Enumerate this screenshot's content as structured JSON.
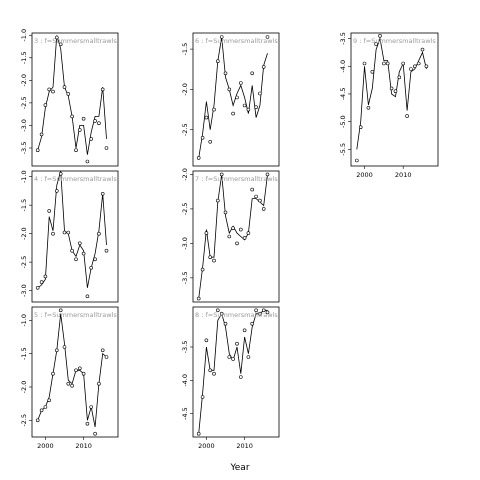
{
  "figure": {
    "xlabel": "Year"
  },
  "chart_data": [
    {
      "type": "line",
      "title": "3 : f=Summersmalltrawls",
      "xlim": [
        1996.5,
        2019
      ],
      "ylim": [
        -3.9,
        -0.95
      ],
      "x_ticks": [
        2000,
        2010
      ],
      "show_x_ticks": false,
      "y_ticks": [
        -1.0,
        -1.5,
        -2.0,
        -2.5,
        -3.0,
        -3.5
      ],
      "y_tick_labels": [
        "-1.0",
        "-1.5",
        "-2.0",
        "-2.5",
        "-3.0",
        "-3.5"
      ],
      "points": {
        "x": [
          1998,
          1999,
          2000,
          2001,
          2002,
          2003,
          2004,
          2005,
          2006,
          2007,
          2008,
          2009,
          2010,
          2011,
          2012,
          2013,
          2014,
          2015,
          2016
        ],
        "y": [
          -3.55,
          -3.2,
          -2.55,
          -2.2,
          -2.25,
          -1.05,
          -1.2,
          -2.15,
          -2.3,
          -2.8,
          -3.55,
          -3.1,
          -2.85,
          -3.8,
          -3.3,
          -2.9,
          -2.95,
          -2.2,
          -3.5
        ]
      },
      "line": {
        "x": [
          1998,
          1999,
          2000,
          2001,
          2002,
          2003,
          2004,
          2005,
          2006,
          2007,
          2008,
          2009,
          2010,
          2011,
          2012,
          2013,
          2014,
          2015,
          2016
        ],
        "y": [
          -3.55,
          -3.25,
          -2.6,
          -2.25,
          -2.15,
          -1.0,
          -1.3,
          -2.15,
          -2.35,
          -2.8,
          -3.5,
          -3.0,
          -3.0,
          -3.65,
          -3.15,
          -2.8,
          -2.8,
          -2.15,
          -3.3
        ]
      }
    },
    {
      "type": "line",
      "title": "4 : f=Summersmalltrawls",
      "xlim": [
        1996.5,
        2019
      ],
      "ylim": [
        -3.2,
        -0.9
      ],
      "x_ticks": [
        2000,
        2010
      ],
      "show_x_ticks": false,
      "y_ticks": [
        -1.0,
        -1.5,
        -2.0,
        -2.5,
        -3.0
      ],
      "y_tick_labels": [
        "-1.0",
        "-1.5",
        "-2.0",
        "-2.5",
        "-3.0"
      ],
      "points": {
        "x": [
          1998,
          1999,
          2000,
          2001,
          2002,
          2003,
          2004,
          2005,
          2006,
          2007,
          2008,
          2009,
          2010,
          2011,
          2012,
          2013,
          2014,
          2015,
          2016
        ],
        "y": [
          -2.95,
          -2.85,
          -2.75,
          -1.6,
          -2.0,
          -1.25,
          -0.95,
          -1.98,
          -1.98,
          -2.3,
          -2.45,
          -2.17,
          -2.35,
          -3.1,
          -2.6,
          -2.45,
          -2.0,
          -1.3,
          -2.3
        ]
      },
      "line": {
        "x": [
          1998,
          1999,
          2000,
          2001,
          2002,
          2003,
          2004,
          2005,
          2006,
          2007,
          2008,
          2009,
          2010,
          2011,
          2012,
          2013,
          2014,
          2015,
          2016
        ],
        "y": [
          -2.95,
          -2.9,
          -2.8,
          -1.7,
          -1.95,
          -1.15,
          -0.9,
          -1.95,
          -2.0,
          -2.3,
          -2.4,
          -2.2,
          -2.3,
          -2.95,
          -2.6,
          -2.35,
          -1.95,
          -1.3,
          -2.2
        ]
      }
    },
    {
      "type": "line",
      "title": "5 : f=Summersmalltrawls",
      "xlim": [
        1996.5,
        2019
      ],
      "ylim": [
        -2.75,
        -0.8
      ],
      "x_ticks": [
        2000,
        2010
      ],
      "x_tick_labels": [
        "2000",
        "2010"
      ],
      "show_x_ticks": true,
      "y_ticks": [
        -1.0,
        -1.5,
        -2.0,
        -2.5
      ],
      "y_tick_labels": [
        "-1.0",
        "-1.5",
        "-2.0",
        "-2.5"
      ],
      "points": {
        "x": [
          1998,
          1999,
          2000,
          2001,
          2002,
          2003,
          2004,
          2005,
          2006,
          2007,
          2008,
          2009,
          2010,
          2011,
          2012,
          2013,
          2014,
          2015,
          2016
        ],
        "y": [
          -2.5,
          -2.35,
          -2.3,
          -2.2,
          -1.8,
          -1.45,
          -0.85,
          -1.4,
          -1.95,
          -1.98,
          -1.75,
          -1.72,
          -1.8,
          -2.55,
          -2.3,
          -2.7,
          -1.95,
          -1.45,
          -1.55
        ]
      },
      "line": {
        "x": [
          1998,
          1999,
          2000,
          2001,
          2002,
          2003,
          2004,
          2005,
          2006,
          2007,
          2008,
          2009,
          2010,
          2011,
          2012,
          2013,
          2014,
          2015,
          2016
        ],
        "y": [
          -2.5,
          -2.35,
          -2.3,
          -2.15,
          -1.8,
          -1.45,
          -0.9,
          -1.35,
          -1.9,
          -1.95,
          -1.75,
          -1.75,
          -1.8,
          -2.5,
          -2.3,
          -2.6,
          -1.95,
          -1.5,
          -1.55
        ]
      }
    },
    {
      "type": "line",
      "title": "6 : f=Summersmalltrawls",
      "xlim": [
        1996.5,
        2019
      ],
      "ylim": [
        -2.95,
        -1.3
      ],
      "x_ticks": [
        2000,
        2010
      ],
      "show_x_ticks": false,
      "y_ticks": [
        -1.5,
        -2.0,
        -2.5
      ],
      "y_tick_labels": [
        "-1.5",
        "-2.0",
        "-2.5"
      ],
      "points": {
        "x": [
          1998,
          1999,
          2000,
          2001,
          2002,
          2003,
          2004,
          2005,
          2006,
          2007,
          2008,
          2009,
          2010,
          2011,
          2012,
          2013,
          2014,
          2015,
          2016
        ],
        "y": [
          -2.85,
          -2.6,
          -2.35,
          -2.65,
          -2.25,
          -1.65,
          -1.35,
          -1.8,
          -2.0,
          -2.3,
          -2.1,
          -1.92,
          -2.2,
          -2.25,
          -1.8,
          -2.22,
          -2.05,
          -1.72,
          -1.35
        ]
      },
      "line": {
        "x": [
          1998,
          1999,
          2000,
          2001,
          2002,
          2003,
          2004,
          2005,
          2006,
          2007,
          2008,
          2009,
          2010,
          2011,
          2012,
          2013,
          2014,
          2015,
          2016
        ],
        "y": [
          -2.85,
          -2.55,
          -2.15,
          -2.5,
          -2.2,
          -1.65,
          -1.35,
          -1.85,
          -2.0,
          -2.2,
          -2.05,
          -1.95,
          -2.1,
          -2.3,
          -1.95,
          -2.35,
          -2.2,
          -1.7,
          -1.55
        ]
      }
    },
    {
      "type": "line",
      "title": "7 : f=Summersmalltrawls",
      "xlim": [
        1996.5,
        2019
      ],
      "ylim": [
        -3.85,
        -1.95
      ],
      "x_ticks": [
        2000,
        2010
      ],
      "show_x_ticks": false,
      "y_ticks": [
        -2.0,
        -2.5,
        -3.0,
        -3.5
      ],
      "y_tick_labels": [
        "-2.0",
        "-2.5",
        "-3.0",
        "-3.5"
      ],
      "points": {
        "x": [
          1998,
          1999,
          2000,
          2001,
          2002,
          2003,
          2004,
          2005,
          2006,
          2007,
          2008,
          2009,
          2010,
          2011,
          2012,
          2013,
          2014,
          2015,
          2016
        ],
        "y": [
          -3.8,
          -3.38,
          -2.85,
          -3.2,
          -3.25,
          -2.38,
          -2.0,
          -2.55,
          -2.9,
          -2.78,
          -3.0,
          -2.8,
          -2.92,
          -2.85,
          -2.22,
          -2.32,
          -2.38,
          -2.5,
          -2.0
        ]
      },
      "line": {
        "x": [
          1998,
          1999,
          2000,
          2001,
          2002,
          2003,
          2004,
          2005,
          2006,
          2007,
          2008,
          2009,
          2010,
          2011,
          2012,
          2013,
          2014,
          2015,
          2016
        ],
        "y": [
          -3.8,
          -3.35,
          -2.8,
          -3.2,
          -3.2,
          -2.4,
          -2.0,
          -2.6,
          -2.85,
          -2.75,
          -2.85,
          -2.9,
          -2.95,
          -2.85,
          -2.35,
          -2.35,
          -2.4,
          -2.45,
          -2.0
        ]
      }
    },
    {
      "type": "line",
      "title": "8 : f=Summersmalltrawls",
      "xlim": [
        1996.5,
        2019
      ],
      "ylim": [
        -4.85,
        -2.9
      ],
      "x_ticks": [
        2000,
        2010
      ],
      "x_tick_labels": [
        "2000",
        "2010"
      ],
      "show_x_ticks": true,
      "y_ticks": [
        -3.5,
        -4.0,
        -4.5
      ],
      "y_tick_labels": [
        "-3.5",
        "-4.0",
        "-4.5"
      ],
      "points": {
        "x": [
          1998,
          1999,
          2000,
          2001,
          2002,
          2003,
          2004,
          2005,
          2006,
          2007,
          2008,
          2009,
          2010,
          2011,
          2012,
          2013,
          2014,
          2015,
          2016
        ],
        "y": [
          -4.8,
          -4.25,
          -3.4,
          -3.85,
          -3.9,
          -2.95,
          -3.0,
          -3.15,
          -3.65,
          -3.68,
          -3.45,
          -3.95,
          -3.25,
          -3.65,
          -3.15,
          -2.95,
          -3.0,
          -2.95,
          -2.98
        ]
      },
      "line": {
        "x": [
          1998,
          1999,
          2000,
          2001,
          2002,
          2003,
          2004,
          2005,
          2006,
          2007,
          2008,
          2009,
          2010,
          2011,
          2012,
          2013,
          2014,
          2015,
          2016
        ],
        "y": [
          -4.8,
          -4.2,
          -3.5,
          -3.85,
          -3.85,
          -3.1,
          -3.0,
          -3.2,
          -3.6,
          -3.7,
          -3.5,
          -3.9,
          -3.35,
          -3.6,
          -3.2,
          -3.0,
          -3.0,
          -2.95,
          -2.95
        ]
      }
    },
    {
      "type": "line",
      "title": "9 : f=Summersmalltrawls",
      "xlim": [
        1996.5,
        2019
      ],
      "ylim": [
        -5.8,
        -3.4
      ],
      "x_ticks": [
        2000,
        2010
      ],
      "x_tick_labels": [
        "2000",
        "2010"
      ],
      "show_x_ticks": true,
      "y_ticks": [
        -3.5,
        -4.0,
        -4.5,
        -5.0,
        -5.5
      ],
      "y_tick_labels": [
        "-3.5",
        "-4.0",
        "-4.5",
        "-5.0",
        "-5.5"
      ],
      "points": {
        "x": [
          1998,
          1999,
          2000,
          2001,
          2002,
          2003,
          2004,
          2005,
          2006,
          2007,
          2008,
          2009,
          2010,
          2011,
          2012,
          2013,
          2014,
          2015,
          2016
        ],
        "y": [
          -5.7,
          -5.1,
          -3.95,
          -4.75,
          -4.1,
          -3.6,
          -3.45,
          -3.95,
          -3.95,
          -4.4,
          -4.45,
          -4.2,
          -3.95,
          -4.9,
          -4.05,
          -4.0,
          -3.95,
          -3.7,
          -4.0
        ]
      },
      "line": {
        "x": [
          1998,
          1999,
          2000,
          2001,
          2002,
          2003,
          2004,
          2005,
          2006,
          2007,
          2008,
          2009,
          2010,
          2011,
          2012,
          2013,
          2014,
          2015,
          2016
        ],
        "y": [
          -5.5,
          -5.0,
          -4.0,
          -4.7,
          -4.4,
          -3.7,
          -3.5,
          -3.9,
          -3.9,
          -4.5,
          -4.55,
          -4.1,
          -3.95,
          -4.8,
          -4.1,
          -4.05,
          -3.9,
          -3.75,
          -4.05
        ]
      }
    }
  ]
}
